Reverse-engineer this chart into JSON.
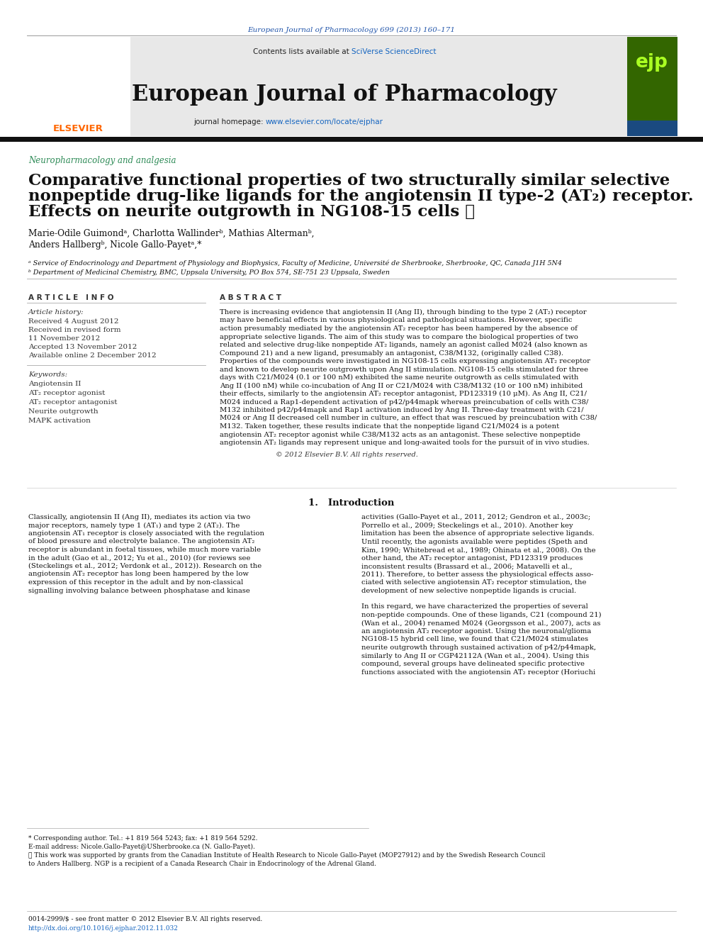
{
  "page_color": "#ffffff",
  "header_journal_ref": "European Journal of Pharmacology 699 (2013) 160–171",
  "header_journal_ref_color": "#2255aa",
  "header_bg_color": "#e8e8e8",
  "header_title": "European Journal of Pharmacology",
  "header_sciverse": "SciVerse ScienceDirect",
  "header_url": "www.elsevier.com/locate/ejphar",
  "link_color": "#1565c0",
  "section_color": "#2e8b57",
  "section_text": "Neuropharmacology and analgesia",
  "article_title_line1": "Comparative functional properties of two structurally similar selective",
  "article_title_line2": "nonpeptide drug-like ligands for the angiotensin II type-2 (AT₂) receptor.",
  "article_title_line3": "Effects on neurite outgrowth in NG108-15 cells ☆",
  "authors_line1": "Marie-Odile Guimondᵃ, Charlotta Wallinderᵇ, Mathias Altermanᵇ,",
  "authors_line2": "Anders Hallbergᵇ, Nicole Gallo-Payetᵃ,*",
  "affil_a": "ᵃ Service of Endocrinology and Department of Physiology and Biophysics, Faculty of Medicine, Université de Sherbrooke, Sherbrooke, QC, Canada J1H 5N4",
  "affil_b": "ᵇ Department of Medicinal Chemistry, BMC, Uppsala University, PO Box 574, SE-751 23 Uppsala, Sweden",
  "article_info_title": "A R T I C L E   I N F O",
  "abstract_title": "A B S T R A C T",
  "article_history_label": "Article history:",
  "history_lines": [
    "Received 4 August 2012",
    "Received in revised form",
    "11 November 2012",
    "Accepted 13 November 2012",
    "Available online 2 December 2012"
  ],
  "keywords_label": "Keywords:",
  "keywords_lines": [
    "Angiotensin II",
    "AT₂ receptor agonist",
    "AT₂ receptor antagonist",
    "Neurite outgrowth",
    "MAPK activation"
  ],
  "abstract_lines": [
    "There is increasing evidence that angiotensin II (Ang II), through binding to the type 2 (AT₂) receptor",
    "may have beneficial effects in various physiological and pathological situations. However, specific",
    "action presumably mediated by the angiotensin AT₂ receptor has been hampered by the absence of",
    "appropriate selective ligands. The aim of this study was to compare the biological properties of two",
    "related and selective drug-like nonpeptide AT₂ ligands, namely an agonist called M024 (also known as",
    "Compound 21) and a new ligand, presumably an antagonist, C38/M132, (originally called C38).",
    "Properties of the compounds were investigated in NG108-15 cells expressing angiotensin AT₂ receptor",
    "and known to develop neurite outgrowth upon Ang II stimulation. NG108-15 cells stimulated for three",
    "days with C21/M024 (0.1 or 100 nM) exhibited the same neurite outgrowth as cells stimulated with",
    "Ang II (100 nM) while co-incubation of Ang II or C21/M024 with C38/M132 (10 or 100 nM) inhibited",
    "their effects, similarly to the angiotensin AT₂ receptor antagonist, PD123319 (10 μM). As Ang II, C21/",
    "M024 induced a Rap1-dependent activation of p42/p44mapk whereas preincubation of cells with C38/",
    "M132 inhibited p42/p44mapk and Rap1 activation induced by Ang II. Three-day treatment with C21/",
    "M024 or Ang II decreased cell number in culture, an effect that was rescued by preincubation with C38/",
    "M132. Taken together, these results indicate that the nonpeptide ligand C21/M024 is a potent",
    "angiotensin AT₂ receptor agonist while C38/M132 acts as an antagonist. These selective nonpeptide",
    "angiotensin AT₂ ligands may represent unique and long-awaited tools for the pursuit of in vivo studies."
  ],
  "abstract_copyright": "© 2012 Elsevier B.V. All rights reserved.",
  "intro_title": "1.   Introduction",
  "intro_col1_lines": [
    "Classically, angiotensin II (Ang II), mediates its action via two",
    "major receptors, namely type 1 (AT₁) and type 2 (AT₂). The",
    "angiotensin AT₁ receptor is closely associated with the regulation",
    "of blood pressure and electrolyte balance. The angiotensin AT₂",
    "receptor is abundant in foetal tissues, while much more variable",
    "in the adult (Gao et al., 2012; Yu et al., 2010) (for reviews see",
    "(Steckelings et al., 2012; Verdonk et al., 2012)). Research on the",
    "angiotensin AT₂ receptor has long been hampered by the low",
    "expression of this receptor in the adult and by non-classical",
    "signalling involving balance between phosphatase and kinase"
  ],
  "intro_col2_lines": [
    "activities (Gallo-Payet et al., 2011, 2012; Gendron et al., 2003c;",
    "Porrello et al., 2009; Steckelings et al., 2010). Another key",
    "limitation has been the absence of appropriate selective ligands.",
    "Until recently, the agonists available were peptides (Speth and",
    "Kim, 1990; Whitebread et al., 1989; Ohinata et al., 2008). On the",
    "other hand, the AT₂ receptor antagonist, PD123319 produces",
    "inconsistent results (Brassard et al., 2006; Matavelli et al.,",
    "2011). Therefore, to better assess the physiological effects asso-",
    "ciated with selective angiotensin AT₂ receptor stimulation, the",
    "development of new selective nonpeptide ligands is crucial.",
    "",
    "In this regard, we have characterized the properties of several",
    "non-peptide compounds. One of these ligands, C21 (compound 21)",
    "(Wan et al., 2004) renamed M024 (Georgsson et al., 2007), acts as",
    "an angiotensin AT₂ receptor agonist. Using the neuronal/glioma",
    "NG108-15 hybrid cell line, we found that C21/M024 stimulates",
    "neurite outgrowth through sustained activation of p42/p44mapk,",
    "similarly to Ang II or CGP42112A (Wan et al., 2004). Using this",
    "compound, several groups have delineated specific protective",
    "functions associated with the angiotensin AT₂ receptor (Horiuchi"
  ],
  "footer_note1": "* Corresponding author. Tel.: +1 819 564 5243; fax: +1 819 564 5292.",
  "footer_note2": "E-mail address: Nicole.Gallo-Payet@USherbrooke.ca (N. Gallo-Payet).",
  "footer_note3a": "☆ This work was supported by grants from the Canadian Institute of Health Research to Nicole Gallo-Payet (MOP27912) and by the Swedish Research Council",
  "footer_note3b": "to Anders Hallberg. NGP is a recipient of a Canada Research Chair in Endocrinology of the Adrenal Gland.",
  "footer_bottom1": "0014-2999/$ - see front matter © 2012 Elsevier B.V. All rights reserved.",
  "footer_bottom2": "http://dx.doi.org/10.1016/j.ejphar.2012.11.032"
}
